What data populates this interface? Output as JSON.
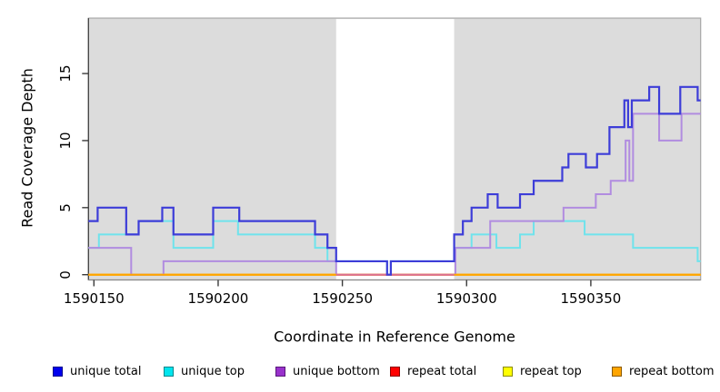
{
  "figure": {
    "y_axis": {
      "title": "Read Coverage Depth",
      "tick_labels": [
        "0",
        "5",
        "10",
        "15"
      ]
    },
    "x_axis": {
      "title": "Coordinate in Reference Genome",
      "tick_labels": [
        "1590150",
        "1590200",
        "1590250",
        "1590300",
        "1590350"
      ]
    }
  },
  "legend": {
    "items": [
      {
        "label": "unique total",
        "fill": "#0000ee",
        "border": "#00008b"
      },
      {
        "label": "unique top",
        "fill": "#00e5ee",
        "border": "#00868b"
      },
      {
        "label": "unique bottom",
        "fill": "#9932cc",
        "border": "#58187a"
      },
      {
        "label": "repeat total",
        "fill": "#ff0000",
        "border": "#8b0000"
      },
      {
        "label": "repeat top",
        "fill": "#ffff00",
        "border": "#8b8b00"
      },
      {
        "label": "repeat bottom",
        "fill": "#ffa500",
        "border": "#8b5a00"
      }
    ]
  },
  "chart_data": {
    "type": "line",
    "subtype": "step-coverage",
    "title": "",
    "xlabel": "Coordinate in Reference Genome",
    "ylabel": "Read Coverage Depth",
    "xlim": [
      1590147.8,
      1590394.2
    ],
    "ylim": [
      -0.392,
      19.13
    ],
    "x_ticks": [
      1590150,
      1590200,
      1590250,
      1590300,
      1590350
    ],
    "y_ticks": [
      0,
      5,
      10,
      15
    ],
    "grid": false,
    "legend_position": "bottom",
    "plot_background": "#dcdcdc",
    "gap_region": {
      "x_start": 1590247.5,
      "x_end": 1590295,
      "fill": "#ffffff",
      "baseline_value": 0,
      "baseline_color": "#db7093"
    },
    "series": [
      {
        "name": "unique total",
        "color": "#3d3dd8",
        "line_width": 2.2,
        "steps": [
          [
            1590147.8,
            4
          ],
          [
            1590151.5,
            5
          ],
          [
            1590163,
            3
          ],
          [
            1590168,
            4
          ],
          [
            1590177.5,
            5
          ],
          [
            1590182,
            3
          ],
          [
            1590198,
            5
          ],
          [
            1590208.5,
            4
          ],
          [
            1590239,
            3
          ],
          [
            1590244,
            2
          ],
          [
            1590247.5,
            1
          ],
          [
            1590268,
            0
          ],
          [
            1590269.5,
            1
          ],
          [
            1590295,
            3
          ],
          [
            1590298.5,
            4
          ],
          [
            1590302,
            5
          ],
          [
            1590308.5,
            6
          ],
          [
            1590312.5,
            5
          ],
          [
            1590321.5,
            6
          ],
          [
            1590327,
            7
          ],
          [
            1590338.5,
            8
          ],
          [
            1590341,
            9
          ],
          [
            1590348,
            8
          ],
          [
            1590352.5,
            9
          ],
          [
            1590357.5,
            11
          ],
          [
            1590363.5,
            13
          ],
          [
            1590365,
            11
          ],
          [
            1590366.5,
            13
          ],
          [
            1590373.5,
            14
          ],
          [
            1590377.5,
            12
          ],
          [
            1590386,
            14
          ],
          [
            1590393,
            13
          ]
        ]
      },
      {
        "name": "unique top",
        "color": "#6fe3ec",
        "line_width": 2,
        "steps": [
          [
            1590147.8,
            2
          ],
          [
            1590152,
            3
          ],
          [
            1590168,
            4
          ],
          [
            1590182,
            2
          ],
          [
            1590198,
            4
          ],
          [
            1590208,
            3
          ],
          [
            1590239,
            2
          ],
          [
            1590244,
            1
          ],
          [
            1590268,
            0
          ],
          [
            1590269.5,
            1
          ],
          [
            1590295,
            2
          ],
          [
            1590302,
            3
          ],
          [
            1590312,
            2
          ],
          [
            1590321.5,
            3
          ],
          [
            1590327,
            4
          ],
          [
            1590347.5,
            3
          ],
          [
            1590367,
            2
          ],
          [
            1590393,
            1
          ]
        ]
      },
      {
        "name": "unique bottom",
        "color": "#b18ce0",
        "line_width": 2,
        "steps": [
          [
            1590147.8,
            2
          ],
          [
            1590165,
            0
          ],
          [
            1590178,
            1
          ],
          [
            1590247.5,
            0
          ],
          [
            1590295.5,
            2
          ],
          [
            1590309.5,
            4
          ],
          [
            1590339,
            5
          ],
          [
            1590352,
            6
          ],
          [
            1590358,
            7
          ],
          [
            1590364,
            10
          ],
          [
            1590365.5,
            7
          ],
          [
            1590367,
            12
          ],
          [
            1590377.5,
            10
          ],
          [
            1590386.5,
            12
          ]
        ]
      },
      {
        "name": "repeat total",
        "color": "#ff0000",
        "line_width": 2,
        "steps": [
          [
            1590147.8,
            0
          ]
        ]
      },
      {
        "name": "repeat top",
        "color": "#ffff00",
        "line_width": 2,
        "steps": [
          [
            1590147.8,
            0
          ]
        ]
      },
      {
        "name": "repeat bottom",
        "color": "#ffa500",
        "line_width": 2,
        "steps": [
          [
            1590147.8,
            0
          ]
        ]
      }
    ]
  }
}
